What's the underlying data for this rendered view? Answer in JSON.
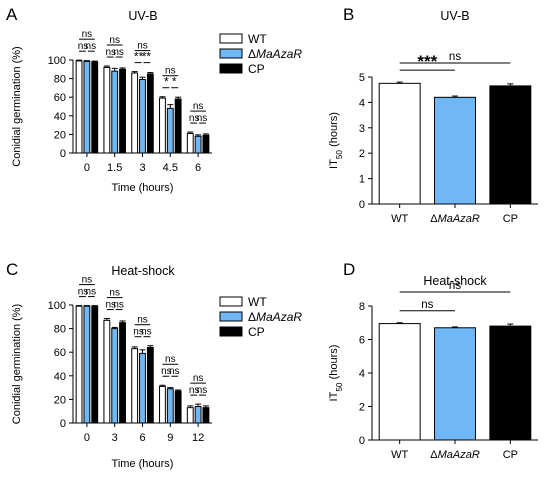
{
  "colors": {
    "wt": "#ffffff",
    "mutant": "#6fb7f5",
    "cp": "#000000",
    "axis": "#000000"
  },
  "chart_data": [
    {
      "panel": "A",
      "type": "bar",
      "title": "UV-B",
      "xlabel": "Time (hours)",
      "ylabel": "Conidial germination (%)",
      "ylim": [
        0,
        100
      ],
      "yticks": [
        0,
        20,
        40,
        60,
        80,
        100
      ],
      "categories": [
        "0",
        "1.5",
        "3",
        "4.5",
        "6"
      ],
      "series": [
        {
          "name": "WT",
          "values": [
            99,
            92,
            86,
            59,
            21
          ],
          "errors": [
            0.8,
            1.5,
            1.5,
            1.5,
            1.5
          ]
        },
        {
          "name": "ΔMaAzaR",
          "values": [
            98.5,
            88,
            79,
            48,
            18
          ],
          "errors": [
            0.8,
            3,
            2.5,
            4,
            1.5
          ]
        },
        {
          "name": "CP",
          "values": [
            98,
            90,
            85,
            58,
            19
          ],
          "errors": [
            0.8,
            1.5,
            1.5,
            2,
            1.5
          ]
        }
      ],
      "annotations": [
        {
          "cat": 0,
          "top": "ns",
          "left": "ns",
          "right": "ns"
        },
        {
          "cat": 1,
          "top": "ns",
          "left": "ns",
          "right": "ns"
        },
        {
          "cat": 2,
          "top": "ns",
          "left": "**",
          "right": "**"
        },
        {
          "cat": 3,
          "top": "ns",
          "left": "*",
          "right": "*"
        },
        {
          "cat": 4,
          "top": "ns",
          "left": "ns",
          "right": "ns"
        }
      ],
      "legend": "top-right"
    },
    {
      "panel": "B",
      "type": "bar",
      "title": "UV-B",
      "ylabel": "IT50 (hours)",
      "ylim": [
        0,
        5
      ],
      "yticks": [
        0,
        1,
        2,
        3,
        4,
        5
      ],
      "categories": [
        "WT",
        "ΔMaAzaR",
        "CP"
      ],
      "values": [
        4.75,
        4.2,
        4.65
      ],
      "errors": [
        0.05,
        0.05,
        0.08
      ],
      "annotations": [
        {
          "from": 0,
          "to": 2,
          "label": "ns"
        },
        {
          "from": 0,
          "to": 1,
          "label": "***"
        }
      ]
    },
    {
      "panel": "C",
      "type": "bar",
      "title": "Heat-shock",
      "xlabel": "Time (hours)",
      "ylabel": "Conidial germination (%)",
      "ylim": [
        0,
        100
      ],
      "yticks": [
        0,
        20,
        40,
        60,
        80,
        100
      ],
      "categories": [
        "0",
        "3",
        "6",
        "9",
        "12"
      ],
      "series": [
        {
          "name": "WT",
          "values": [
            99,
            87,
            63,
            31,
            13
          ],
          "errors": [
            0.5,
            1.5,
            1.5,
            1.0,
            1.5
          ]
        },
        {
          "name": "ΔMaAzaR",
          "values": [
            99,
            80,
            59,
            29,
            14
          ],
          "errors": [
            0.5,
            1.0,
            3.0,
            1.0,
            2.0
          ]
        },
        {
          "name": "CP",
          "values": [
            99,
            85,
            64,
            27,
            13
          ],
          "errors": [
            0.5,
            1.5,
            1.5,
            1.0,
            1.5
          ]
        }
      ],
      "annotations": [
        {
          "cat": 0,
          "top": "ns",
          "left": "ns",
          "right": "ns"
        },
        {
          "cat": 1,
          "top": "ns",
          "left": "ns",
          "right": "ns"
        },
        {
          "cat": 2,
          "top": "ns",
          "left": "ns",
          "right": "ns"
        },
        {
          "cat": 3,
          "top": "ns",
          "left": "ns",
          "right": "ns"
        },
        {
          "cat": 4,
          "top": "ns",
          "left": "ns",
          "right": "ns"
        }
      ],
      "legend": "top-right"
    },
    {
      "panel": "D",
      "type": "bar",
      "title": "Heat-shock",
      "ylabel": "IT50 (hours)",
      "ylim": [
        0,
        8
      ],
      "yticks": [
        0,
        2,
        4,
        6,
        8
      ],
      "categories": [
        "WT",
        "ΔMaAzaR",
        "CP"
      ],
      "values": [
        6.95,
        6.7,
        6.8
      ],
      "errors": [
        0.05,
        0.05,
        0.12
      ],
      "annotations": [
        {
          "from": 0,
          "to": 2,
          "label": "ns"
        },
        {
          "from": 0,
          "to": 1,
          "label": "ns"
        }
      ]
    }
  ]
}
